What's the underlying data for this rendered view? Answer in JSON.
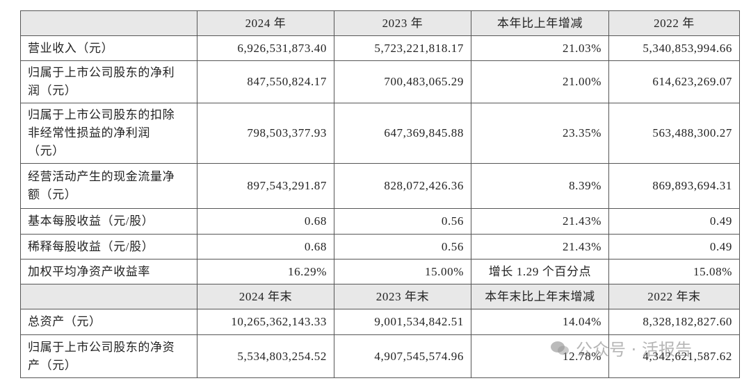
{
  "sections": [
    {
      "header": [
        "2024 年",
        "2023 年",
        "本年比上年增减",
        "2022 年"
      ],
      "rows": [
        {
          "label": [
            "营业收入（元）"
          ],
          "cells": [
            "6,926,531,873.40",
            "5,723,221,818.17",
            "21.03%",
            "5,340,853,994.66"
          ]
        },
        {
          "label": [
            "归属于上市公司股东的净利",
            "润（元）"
          ],
          "cells": [
            "847,550,824.17",
            "700,483,065.29",
            "21.00%",
            "614,623,269.07"
          ]
        },
        {
          "label": [
            "归属于上市公司股东的扣除",
            "非经常性损益的净利润",
            "（元）"
          ],
          "cells": [
            "798,503,377.93",
            "647,369,845.88",
            "23.35%",
            "563,488,300.27"
          ]
        },
        {
          "label": [
            "经营活动产生的现金流量净",
            "额（元）"
          ],
          "cells": [
            "897,543,291.87",
            "828,072,426.36",
            "8.39%",
            "869,893,694.31"
          ]
        },
        {
          "label": [
            "基本每股收益（元/股）"
          ],
          "cells": [
            "0.68",
            "0.56",
            "21.43%",
            "0.49"
          ]
        },
        {
          "label": [
            "稀释每股收益（元/股）"
          ],
          "cells": [
            "0.68",
            "0.56",
            "21.43%",
            "0.49"
          ]
        },
        {
          "label": [
            "加权平均净资产收益率"
          ],
          "cells": [
            "16.29%",
            "15.00%",
            "增长 1.29 个百分点",
            "15.08%"
          ]
        }
      ]
    },
    {
      "header": [
        "2024 年末",
        "2023 年末",
        "本年末比上年末增减",
        "2022 年末"
      ],
      "rows": [
        {
          "label": [
            "总资产（元）"
          ],
          "cells": [
            "10,265,362,143.33",
            "9,001,534,842.51",
            "14.04%",
            "8,328,182,827.60"
          ]
        },
        {
          "label": [
            "归属于上市公司股东的净资",
            "产（元）"
          ],
          "cells": [
            "5,534,803,254.52",
            "4,907,545,574.96",
            "12.78%",
            "4,342,621,587.62"
          ]
        }
      ]
    }
  ],
  "watermark": "公众号 · 活报告"
}
